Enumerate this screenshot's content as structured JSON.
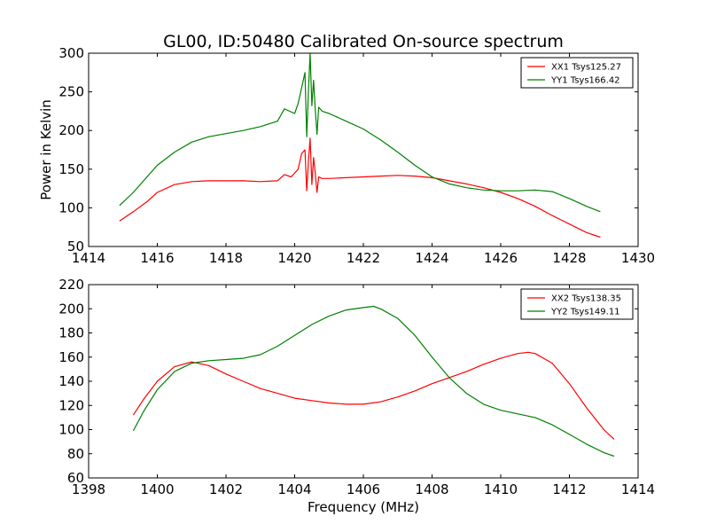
{
  "title": "GL00, ID:50480 Calibrated On-source spectrum",
  "ylabel": "Power in Kelvin",
  "xlabel": "Frequency (MHz)",
  "chart_data": [
    {
      "type": "line",
      "xlim": [
        1414,
        1430
      ],
      "ylim": [
        50,
        300
      ],
      "xticks": [
        1414,
        1416,
        1418,
        1420,
        1422,
        1424,
        1426,
        1428,
        1430
      ],
      "yticks": [
        50,
        100,
        150,
        200,
        250,
        300
      ],
      "legend": "top-right",
      "series": [
        {
          "name": "XX1 Tsys125.27",
          "color": "#ff0000",
          "x": [
            1414.9,
            1415.3,
            1415.7,
            1416.0,
            1416.5,
            1417.0,
            1417.5,
            1418.0,
            1418.5,
            1419.0,
            1419.5,
            1419.7,
            1419.9,
            1420.1,
            1420.2,
            1420.3,
            1420.35,
            1420.4,
            1420.45,
            1420.5,
            1420.55,
            1420.6,
            1420.65,
            1420.7,
            1420.8,
            1421.0,
            1421.5,
            1422.0,
            1422.5,
            1423.0,
            1423.5,
            1424.0,
            1424.5,
            1425.0,
            1425.5,
            1426.0,
            1426.5,
            1427.0,
            1427.5,
            1428.0,
            1428.5,
            1428.9
          ],
          "values": [
            83,
            95,
            108,
            120,
            130,
            134,
            135,
            135,
            135,
            134,
            135,
            143,
            140,
            150,
            170,
            175,
            122,
            160,
            190,
            130,
            165,
            145,
            120,
            140,
            138,
            138,
            139,
            140,
            141,
            142,
            141,
            139,
            135,
            131,
            126,
            120,
            112,
            102,
            90,
            79,
            68,
            62
          ]
        },
        {
          "name": "YY1 Tsys166.42",
          "color": "#008000",
          "x": [
            1414.9,
            1415.3,
            1415.7,
            1416.0,
            1416.5,
            1417.0,
            1417.5,
            1418.0,
            1418.5,
            1419.0,
            1419.5,
            1419.7,
            1419.8,
            1420.0,
            1420.1,
            1420.2,
            1420.3,
            1420.35,
            1420.4,
            1420.45,
            1420.5,
            1420.55,
            1420.6,
            1420.65,
            1420.7,
            1420.8,
            1421.0,
            1421.5,
            1422.0,
            1422.5,
            1423.0,
            1423.5,
            1424.0,
            1424.5,
            1425.0,
            1425.5,
            1426.0,
            1426.5,
            1427.0,
            1427.5,
            1428.0,
            1428.5,
            1428.9
          ],
          "values": [
            103,
            120,
            140,
            155,
            172,
            185,
            192,
            196,
            200,
            205,
            212,
            228,
            226,
            222,
            235,
            255,
            275,
            192,
            250,
            300,
            232,
            265,
            228,
            195,
            230,
            225,
            222,
            212,
            202,
            188,
            172,
            155,
            140,
            131,
            126,
            123,
            122,
            122,
            123,
            121,
            112,
            102,
            95
          ]
        }
      ]
    },
    {
      "type": "line",
      "xlim": [
        1398,
        1414
      ],
      "ylim": [
        60,
        220
      ],
      "xticks": [
        1398,
        1400,
        1402,
        1404,
        1406,
        1408,
        1410,
        1412,
        1414
      ],
      "yticks": [
        60,
        80,
        100,
        120,
        140,
        160,
        180,
        200,
        220
      ],
      "legend": "top-right",
      "series": [
        {
          "name": "XX2 Tsys138.35",
          "color": "#ff0000",
          "x": [
            1399.3,
            1399.6,
            1400.0,
            1400.5,
            1401.0,
            1401.5,
            1402.0,
            1402.5,
            1403.0,
            1403.5,
            1404.0,
            1404.5,
            1405.0,
            1405.5,
            1406.0,
            1406.5,
            1407.0,
            1407.5,
            1408.0,
            1408.5,
            1409.0,
            1409.5,
            1410.0,
            1410.5,
            1410.8,
            1411.0,
            1411.5,
            1412.0,
            1412.5,
            1413.0,
            1413.3
          ],
          "values": [
            112,
            125,
            140,
            152,
            156,
            153,
            146,
            140,
            134,
            130,
            126,
            124,
            122,
            121,
            121,
            123,
            127,
            132,
            138,
            143,
            148,
            154,
            159,
            163,
            164,
            163,
            155,
            138,
            118,
            100,
            92
          ]
        },
        {
          "name": "YY2 Tsys149.11",
          "color": "#008000",
          "x": [
            1399.3,
            1399.6,
            1400.0,
            1400.5,
            1401.0,
            1401.5,
            1402.0,
            1402.5,
            1403.0,
            1403.5,
            1404.0,
            1404.5,
            1405.0,
            1405.5,
            1406.0,
            1406.3,
            1406.5,
            1407.0,
            1407.5,
            1408.0,
            1408.5,
            1409.0,
            1409.5,
            1410.0,
            1410.5,
            1411.0,
            1411.5,
            1412.0,
            1412.5,
            1413.0,
            1413.3
          ],
          "values": [
            99,
            115,
            133,
            148,
            155,
            157,
            158,
            159,
            162,
            169,
            178,
            187,
            194,
            199,
            201,
            202,
            200,
            192,
            178,
            160,
            143,
            130,
            121,
            116,
            113,
            110,
            104,
            96,
            88,
            81,
            78
          ]
        }
      ]
    }
  ]
}
